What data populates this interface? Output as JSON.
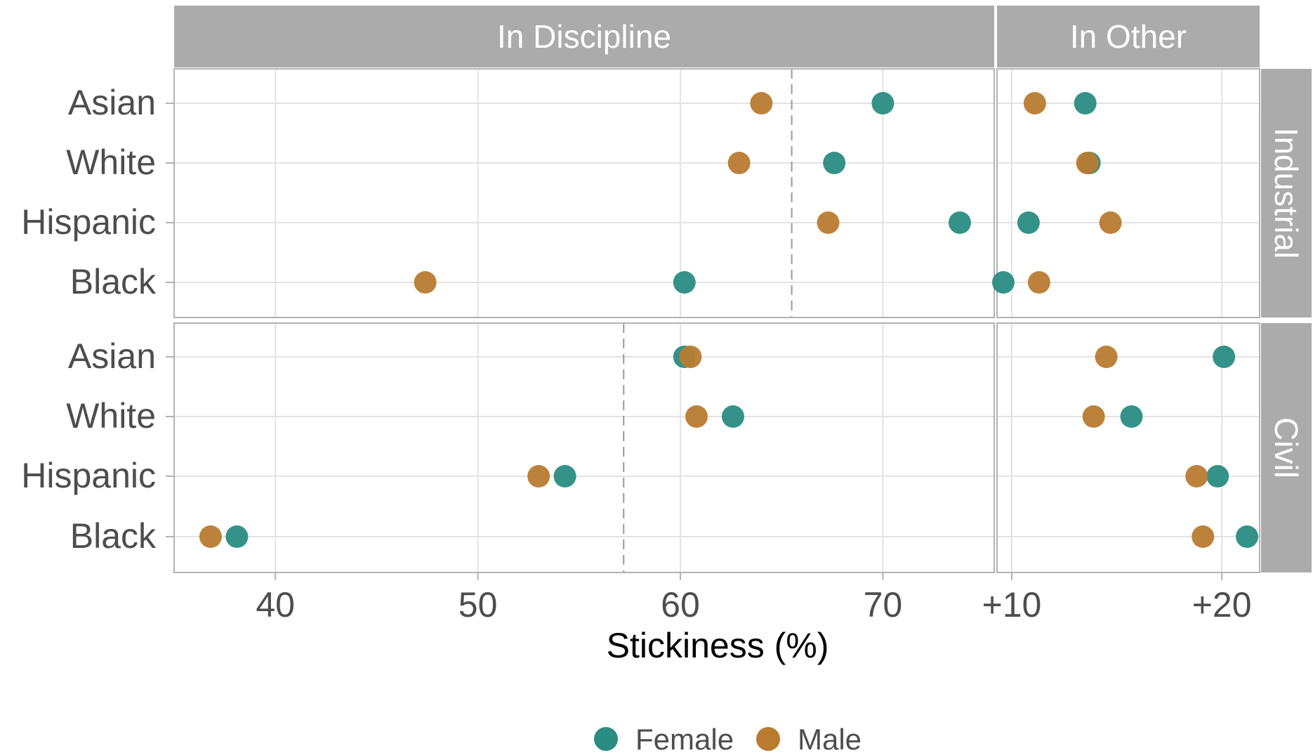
{
  "chart_data": {
    "type": "scatter",
    "x_label": "Stickiness (%)",
    "column_facets": [
      "In Discipline",
      "In Other"
    ],
    "row_facets": [
      "Industrial",
      "Civil"
    ],
    "categories": [
      "Asian",
      "White",
      "Hispanic",
      "Black"
    ],
    "x_ticks": {
      "In Discipline": {
        "values": [
          40,
          50,
          60,
          70
        ],
        "labels": [
          "40",
          "50",
          "60",
          "70"
        ]
      },
      "In Other": {
        "values": [
          10,
          20
        ],
        "labels": [
          "+10",
          "+20"
        ]
      }
    },
    "x_range": {
      "In Discipline": [
        35,
        75.5
      ],
      "In Other": [
        9.3,
        21.8
      ]
    },
    "reference_lines": {
      "Industrial": 65.5,
      "Civil": 57.2
    },
    "legend": {
      "position": "bottom",
      "entries": [
        {
          "name": "Female",
          "color": "#2a8c82"
        },
        {
          "name": "Male",
          "color": "#b87b30"
        }
      ]
    },
    "grid": true,
    "series": [
      {
        "name": "Female",
        "color": "#2a8c82",
        "values": {
          "Industrial": {
            "In Discipline": {
              "Asian": 70.0,
              "White": 67.6,
              "Hispanic": 73.8,
              "Black": 60.2
            },
            "In Other": {
              "Asian": 13.5,
              "White": 13.7,
              "Hispanic": 10.8,
              "Black": 9.6
            }
          },
          "Civil": {
            "In Discipline": {
              "Asian": 60.2,
              "White": 62.6,
              "Hispanic": 54.3,
              "Black": 38.1
            },
            "In Other": {
              "Asian": 20.1,
              "White": 15.7,
              "Hispanic": 19.8,
              "Black": 21.2
            }
          }
        }
      },
      {
        "name": "Male",
        "color": "#b87b30",
        "values": {
          "Industrial": {
            "In Discipline": {
              "Asian": 64.0,
              "White": 62.9,
              "Hispanic": 67.3,
              "Black": 47.4
            },
            "In Other": {
              "Asian": 11.1,
              "White": 13.6,
              "Hispanic": 14.7,
              "Black": 11.3
            }
          },
          "Civil": {
            "In Discipline": {
              "Asian": 60.5,
              "White": 60.8,
              "Hispanic": 53.0,
              "Black": 36.8
            },
            "In Other": {
              "Asian": 14.5,
              "White": 13.9,
              "Hispanic": 18.8,
              "Black": 19.1
            }
          }
        }
      }
    ]
  }
}
